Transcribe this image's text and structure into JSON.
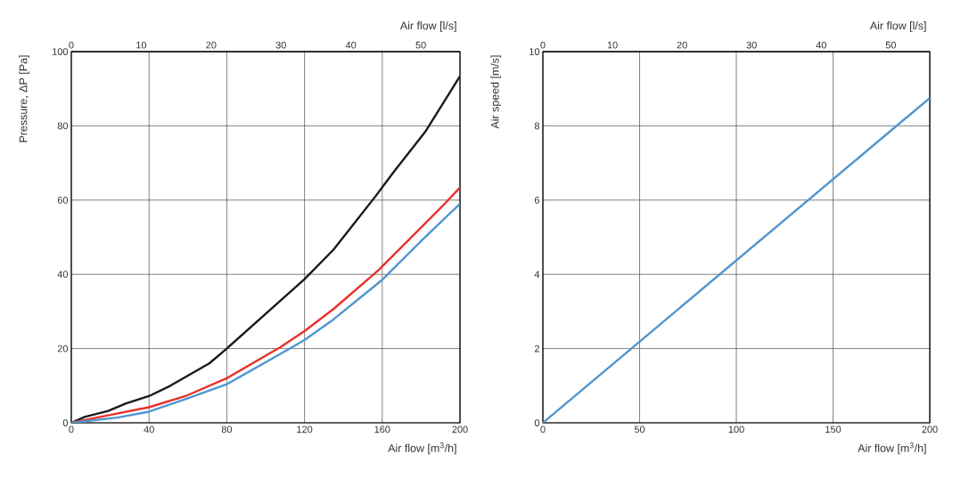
{
  "chart_data": [
    {
      "type": "line",
      "xlabel": "Air flow [m$^{3}$/h]",
      "ylabel": "Pressure, ΔP [Pa]",
      "x2label": "Air flow [l/s]",
      "xlim": [
        0,
        200
      ],
      "xticks": [
        0,
        40,
        80,
        120,
        160,
        200
      ],
      "ylim": [
        0,
        100
      ],
      "yticks": [
        0,
        20,
        40,
        60,
        80,
        100
      ],
      "x2lim": [
        0,
        55.6
      ],
      "x2ticks": [
        0,
        10,
        20,
        30,
        40,
        50
      ],
      "grid": true,
      "series": [
        {
          "color": "#1a1a1a",
          "x": [
            0,
            6.9,
            19,
            28,
            40,
            51,
            71,
            80,
            104.6,
            120,
            135,
            156.5,
            165.6,
            182.4,
            200
          ],
          "values": [
            0,
            1.6,
            3.2,
            5.2,
            7.2,
            10,
            16,
            20,
            31.5,
            38.7,
            46.7,
            61,
            67.4,
            78.6,
            93.4
          ]
        },
        {
          "color": "#e8312a",
          "x": [
            0,
            20.6,
            40,
            58.8,
            80,
            107.6,
            120,
            135,
            158,
            176.3,
            191.6,
            200
          ],
          "values": [
            0,
            2.2,
            4.2,
            7.2,
            12,
            20.4,
            24.7,
            30.7,
            41.1,
            50.7,
            58.7,
            63.4
          ]
        },
        {
          "color": "#4f95d0",
          "x": [
            0,
            23.7,
            40,
            58.8,
            80,
            113.7,
            120,
            135,
            159.5,
            181,
            200
          ],
          "values": [
            0,
            1.4,
            3,
            6.4,
            10.4,
            20.4,
            22.3,
            27.9,
            38.3,
            49.5,
            59
          ]
        }
      ]
    },
    {
      "type": "line",
      "xlabel": "Air flow [m$^{3}$/h]",
      "ylabel": "Air speed [m/s]",
      "x2label": "Air flow [l/s]",
      "xlim": [
        0,
        200
      ],
      "xticks": [
        0,
        50,
        100,
        150,
        200
      ],
      "ylim": [
        0,
        10
      ],
      "yticks": [
        0,
        2,
        4,
        6,
        8,
        10
      ],
      "x2lim": [
        0,
        55.6
      ],
      "x2ticks": [
        0,
        10,
        20,
        30,
        40,
        50
      ],
      "grid": true,
      "series": [
        {
          "color": "#4f95d0",
          "x": [
            0,
            200
          ],
          "values": [
            0,
            8.75
          ]
        }
      ]
    }
  ]
}
